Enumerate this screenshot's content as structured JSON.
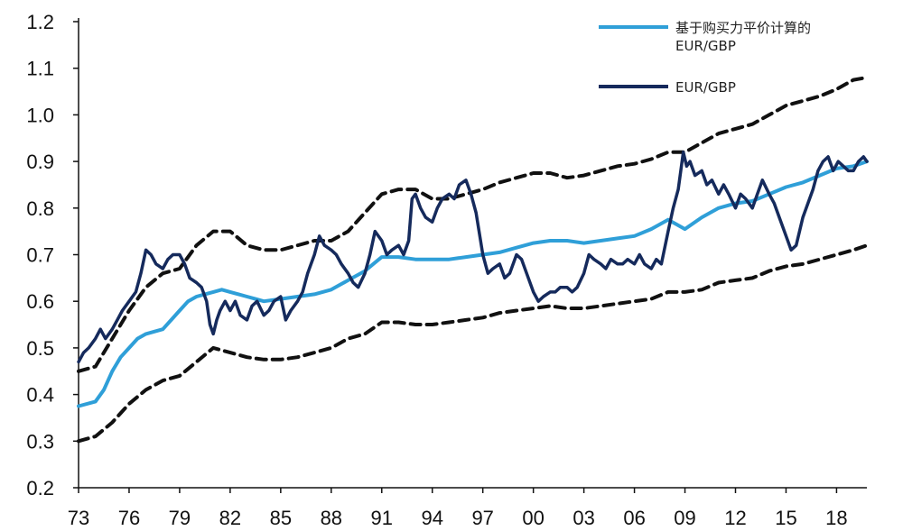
{
  "chart_data": {
    "type": "line",
    "x_tick_labels": [
      "73",
      "76",
      "79",
      "82",
      "85",
      "88",
      "91",
      "94",
      "97",
      "00",
      "03",
      "06",
      "09",
      "12",
      "15",
      "18"
    ],
    "y_tick_labels": [
      "1.2",
      "1.1",
      "1.0",
      "0.9",
      "0.8",
      "0.7",
      "0.6",
      "0.5",
      "0.4",
      "0.3",
      "0.2"
    ],
    "xlim": [
      1973,
      2019.8
    ],
    "ylim": [
      0.2,
      1.2
    ],
    "grid": false,
    "legend_position": "top-right",
    "legend": {
      "ppp_label_line1": "基于购买力平价计算的",
      "ppp_label_line2": "EUR/GBP",
      "spot_label": "EUR/GBP"
    },
    "colors": {
      "ppp": "#2f9fd8",
      "spot": "#152a5c",
      "bands": "#111111",
      "axis": "#111111"
    },
    "series": [
      {
        "role": "ppp",
        "x": [
          1973.0,
          1974.0,
          1974.5,
          1975.0,
          1975.5,
          1976.0,
          1976.5,
          1977.0,
          1977.5,
          1978.0,
          1978.5,
          1979.0,
          1979.5,
          1980.0,
          1980.5,
          1981.0,
          1981.5,
          1982.0,
          1982.5,
          1983.0,
          1983.5,
          1984.0,
          1985.0,
          1986.0,
          1987.0,
          1988.0,
          1989.0,
          1990.0,
          1990.5,
          1991.0,
          1992.0,
          1993.0,
          1994.0,
          1995.0,
          1996.0,
          1997.0,
          1998.0,
          1999.0,
          2000.0,
          2001.0,
          2002.0,
          2003.0,
          2004.0,
          2005.0,
          2006.0,
          2007.0,
          2008.0,
          2008.5,
          2009.0,
          2010.0,
          2011.0,
          2012.0,
          2013.0,
          2014.0,
          2015.0,
          2016.0,
          2017.0,
          2018.0,
          2019.0,
          2019.8
        ],
        "values": [
          0.375,
          0.385,
          0.41,
          0.45,
          0.48,
          0.5,
          0.52,
          0.53,
          0.535,
          0.54,
          0.56,
          0.58,
          0.6,
          0.61,
          0.615,
          0.62,
          0.625,
          0.62,
          0.615,
          0.61,
          0.605,
          0.6,
          0.605,
          0.61,
          0.615,
          0.625,
          0.645,
          0.665,
          0.68,
          0.695,
          0.695,
          0.69,
          0.69,
          0.69,
          0.695,
          0.7,
          0.705,
          0.715,
          0.725,
          0.73,
          0.73,
          0.725,
          0.73,
          0.735,
          0.74,
          0.755,
          0.775,
          0.765,
          0.755,
          0.78,
          0.8,
          0.81,
          0.815,
          0.83,
          0.845,
          0.855,
          0.87,
          0.885,
          0.89,
          0.9
        ]
      },
      {
        "role": "upper_band",
        "x": [
          1973.0,
          1974.0,
          1975.0,
          1976.0,
          1977.0,
          1978.0,
          1979.0,
          1980.0,
          1981.0,
          1982.0,
          1983.0,
          1984.0,
          1985.0,
          1986.0,
          1987.0,
          1988.0,
          1989.0,
          1990.0,
          1991.0,
          1992.0,
          1993.0,
          1994.0,
          1995.0,
          1996.0,
          1997.0,
          1998.0,
          1999.0,
          2000.0,
          2001.0,
          2002.0,
          2003.0,
          2004.0,
          2005.0,
          2006.0,
          2007.0,
          2008.0,
          2009.0,
          2010.0,
          2011.0,
          2012.0,
          2013.0,
          2014.0,
          2015.0,
          2016.0,
          2017.0,
          2018.0,
          2019.0,
          2019.8
        ],
        "values": [
          0.45,
          0.46,
          0.52,
          0.58,
          0.63,
          0.66,
          0.67,
          0.72,
          0.75,
          0.75,
          0.72,
          0.71,
          0.71,
          0.72,
          0.73,
          0.73,
          0.75,
          0.79,
          0.83,
          0.84,
          0.84,
          0.82,
          0.82,
          0.83,
          0.84,
          0.855,
          0.865,
          0.875,
          0.875,
          0.865,
          0.87,
          0.88,
          0.89,
          0.895,
          0.905,
          0.92,
          0.92,
          0.94,
          0.96,
          0.97,
          0.98,
          1.0,
          1.02,
          1.03,
          1.04,
          1.055,
          1.075,
          1.08
        ]
      },
      {
        "role": "lower_band",
        "x": [
          1973.0,
          1974.0,
          1975.0,
          1976.0,
          1977.0,
          1978.0,
          1979.0,
          1980.0,
          1981.0,
          1982.0,
          1983.0,
          1984.0,
          1985.0,
          1986.0,
          1987.0,
          1988.0,
          1989.0,
          1990.0,
          1991.0,
          1992.0,
          1993.0,
          1994.0,
          1995.0,
          1996.0,
          1997.0,
          1998.0,
          1999.0,
          2000.0,
          2001.0,
          2002.0,
          2003.0,
          2004.0,
          2005.0,
          2006.0,
          2007.0,
          2008.0,
          2009.0,
          2010.0,
          2011.0,
          2012.0,
          2013.0,
          2014.0,
          2015.0,
          2016.0,
          2017.0,
          2018.0,
          2019.0,
          2019.8
        ],
        "values": [
          0.3,
          0.31,
          0.34,
          0.38,
          0.41,
          0.43,
          0.44,
          0.47,
          0.5,
          0.49,
          0.48,
          0.475,
          0.475,
          0.48,
          0.49,
          0.5,
          0.52,
          0.53,
          0.555,
          0.555,
          0.55,
          0.55,
          0.555,
          0.56,
          0.565,
          0.575,
          0.58,
          0.585,
          0.59,
          0.585,
          0.585,
          0.59,
          0.595,
          0.6,
          0.605,
          0.62,
          0.62,
          0.625,
          0.64,
          0.645,
          0.65,
          0.665,
          0.675,
          0.68,
          0.69,
          0.7,
          0.71,
          0.72
        ]
      },
      {
        "role": "spot",
        "x": [
          1973.0,
          1973.3,
          1973.6,
          1974.0,
          1974.3,
          1974.6,
          1975.0,
          1975.3,
          1975.6,
          1976.0,
          1976.4,
          1976.7,
          1977.0,
          1977.3,
          1977.6,
          1978.0,
          1978.3,
          1978.6,
          1979.0,
          1979.3,
          1979.6,
          1980.0,
          1980.3,
          1980.6,
          1980.8,
          1981.0,
          1981.2,
          1981.4,
          1981.7,
          1982.0,
          1982.3,
          1982.6,
          1983.0,
          1983.3,
          1983.6,
          1984.0,
          1984.3,
          1984.6,
          1985.0,
          1985.3,
          1985.6,
          1986.0,
          1986.3,
          1986.6,
          1987.0,
          1987.3,
          1987.6,
          1988.0,
          1988.3,
          1988.6,
          1989.0,
          1989.3,
          1989.6,
          1990.0,
          1990.3,
          1990.6,
          1991.0,
          1991.3,
          1991.6,
          1992.0,
          1992.3,
          1992.6,
          1992.8,
          1993.0,
          1993.3,
          1993.6,
          1994.0,
          1994.3,
          1994.6,
          1995.0,
          1995.3,
          1995.6,
          1996.0,
          1996.3,
          1996.6,
          1997.0,
          1997.3,
          1997.6,
          1998.0,
          1998.3,
          1998.6,
          1999.0,
          1999.3,
          1999.6,
          2000.0,
          2000.3,
          2000.6,
          2001.0,
          2001.3,
          2001.6,
          2002.0,
          2002.3,
          2002.6,
          2003.0,
          2003.3,
          2003.6,
          2004.0,
          2004.3,
          2004.6,
          2005.0,
          2005.3,
          2005.6,
          2006.0,
          2006.3,
          2006.6,
          2007.0,
          2007.3,
          2007.6,
          2008.0,
          2008.3,
          2008.6,
          2008.9,
          2009.1,
          2009.3,
          2009.6,
          2010.0,
          2010.3,
          2010.6,
          2011.0,
          2011.3,
          2011.6,
          2012.0,
          2012.3,
          2012.6,
          2013.0,
          2013.3,
          2013.6,
          2014.0,
          2014.3,
          2014.6,
          2015.0,
          2015.3,
          2015.6,
          2016.0,
          2016.3,
          2016.6,
          2016.9,
          2017.2,
          2017.5,
          2017.8,
          2018.1,
          2018.4,
          2018.7,
          2019.0,
          2019.3,
          2019.6,
          2019.8
        ],
        "values": [
          0.47,
          0.49,
          0.5,
          0.52,
          0.54,
          0.52,
          0.54,
          0.56,
          0.58,
          0.6,
          0.62,
          0.66,
          0.71,
          0.7,
          0.68,
          0.67,
          0.69,
          0.7,
          0.7,
          0.68,
          0.65,
          0.64,
          0.63,
          0.6,
          0.55,
          0.53,
          0.56,
          0.58,
          0.6,
          0.58,
          0.6,
          0.57,
          0.56,
          0.59,
          0.6,
          0.57,
          0.58,
          0.6,
          0.61,
          0.56,
          0.58,
          0.6,
          0.62,
          0.66,
          0.7,
          0.74,
          0.72,
          0.71,
          0.7,
          0.68,
          0.66,
          0.64,
          0.63,
          0.66,
          0.7,
          0.75,
          0.73,
          0.7,
          0.71,
          0.72,
          0.7,
          0.73,
          0.82,
          0.83,
          0.8,
          0.78,
          0.77,
          0.8,
          0.82,
          0.83,
          0.82,
          0.85,
          0.86,
          0.83,
          0.79,
          0.7,
          0.66,
          0.67,
          0.68,
          0.65,
          0.66,
          0.7,
          0.69,
          0.66,
          0.62,
          0.6,
          0.61,
          0.62,
          0.62,
          0.63,
          0.63,
          0.62,
          0.63,
          0.66,
          0.7,
          0.69,
          0.68,
          0.67,
          0.69,
          0.68,
          0.68,
          0.69,
          0.68,
          0.7,
          0.68,
          0.67,
          0.69,
          0.68,
          0.75,
          0.8,
          0.84,
          0.92,
          0.89,
          0.9,
          0.87,
          0.88,
          0.85,
          0.86,
          0.83,
          0.85,
          0.83,
          0.8,
          0.83,
          0.82,
          0.8,
          0.83,
          0.86,
          0.83,
          0.81,
          0.78,
          0.74,
          0.71,
          0.72,
          0.78,
          0.81,
          0.84,
          0.88,
          0.9,
          0.91,
          0.88,
          0.9,
          0.89,
          0.88,
          0.88,
          0.9,
          0.91,
          0.9
        ]
      }
    ]
  }
}
